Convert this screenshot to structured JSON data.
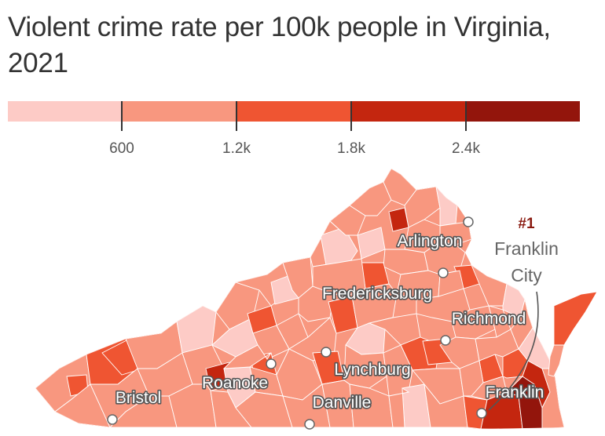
{
  "title": "Violent crime rate per 100k people in Virginia, 2021",
  "legend": {
    "colors": [
      "#fdcbc6",
      "#f8977f",
      "#ef5532",
      "#c4260f",
      "#93150c"
    ],
    "ticks": [
      "600",
      "1.2k",
      "1.8k",
      "2.4k"
    ]
  },
  "colors": {
    "border": "#ffffff",
    "city_dot_fill": "#ffffff",
    "city_dot_stroke": "#666666",
    "label_halo": "#555555"
  },
  "cities": [
    {
      "name": "Arlington"
    },
    {
      "name": "Fredericksburg"
    },
    {
      "name": "Richmond"
    },
    {
      "name": "Lynchburg"
    },
    {
      "name": "Roanoke"
    },
    {
      "name": "Bristol"
    },
    {
      "name": "Danville"
    },
    {
      "name": "Franklin"
    }
  ],
  "annotation": {
    "rank": "#1",
    "line1": "Franklin",
    "line2": "City"
  }
}
